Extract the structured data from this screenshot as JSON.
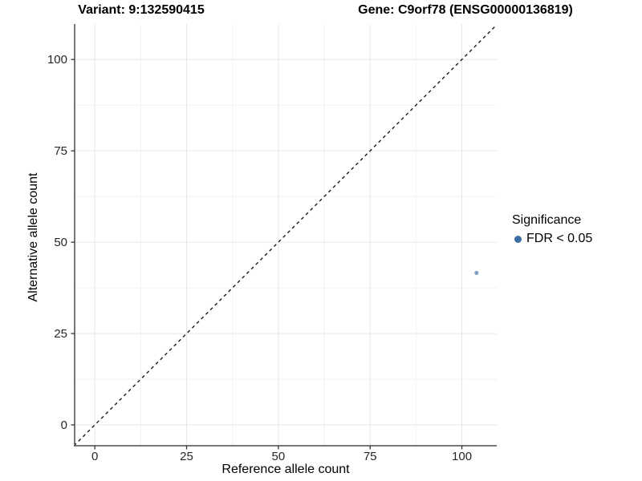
{
  "chart_data": {
    "type": "scatter",
    "title_left": "Variant: 9:132590415",
    "title_right": "Gene: C9orf78 (ENSG00000136819)",
    "xlabel": "Reference allele count",
    "ylabel": "Alternative allele count",
    "x_ticks": [
      0,
      25,
      50,
      75,
      100
    ],
    "y_ticks": [
      0,
      25,
      50,
      75,
      100
    ],
    "x_minor_ticks": [
      12.5,
      37.5,
      62.5,
      87.5
    ],
    "y_minor_ticks": [
      12.5,
      37.5,
      62.5,
      87.5
    ],
    "xlim": [
      -5.5,
      109.5
    ],
    "ylim": [
      -5.7,
      109.7
    ],
    "grid": "major and minor, very light gray on white",
    "reference_line": {
      "type": "identity",
      "equation": "y = x",
      "linetype": "dashed",
      "color": "#1a1a1a"
    },
    "series": [
      {
        "name": "FDR < 0.05",
        "color": "#3a6ea5",
        "opacity": 0.65,
        "point_radius": 2.6,
        "points": [
          {
            "x": 104,
            "y": 41.6
          }
        ]
      }
    ],
    "legend": {
      "title": "Significance",
      "position": "right",
      "items": [
        {
          "label": "FDR < 0.05",
          "color": "#3a6ea5"
        }
      ]
    },
    "colors": {
      "axis_line": "#4a4a4a",
      "tick_mark": "#333333",
      "tick_label": "#262626",
      "grid_major": "#e6e6e6",
      "grid_minor": "#f2f2f2",
      "title": "#000000"
    }
  }
}
